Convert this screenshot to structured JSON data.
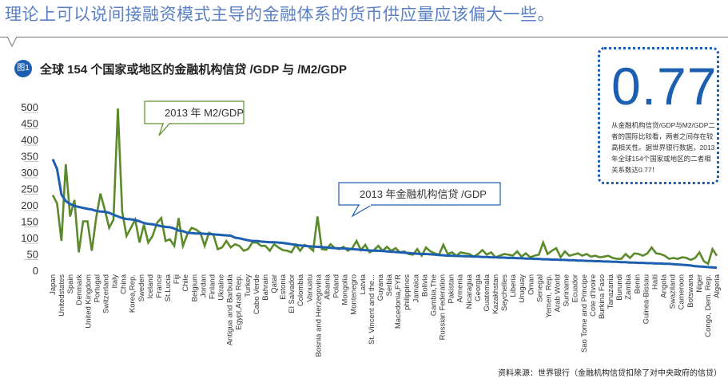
{
  "headline": "理论上可以说间接融资模式主导的金融体系的货币供应量应该偏大一些。",
  "figure": {
    "badge": "图1",
    "title": "全球 154 个国家或地区的金融机构信贷 /GDP 与 /M2/GDP"
  },
  "stat_box": {
    "value": "0.77",
    "text": "从金融机构信贷/GDP与M2/GDP二者的国际比较看，两者之间存在较高相关性。据世界银行数据，2013年全球154个国家或地区的二者相关系数达0.77！"
  },
  "footer": "资料来源：世界银行（金融机构信贷扣除了对中央政府的信贷）",
  "colors": {
    "m2": "#5a8a2a",
    "credit": "#1c5fb0",
    "headline": "#5b80c4"
  },
  "chart_data": {
    "type": "line",
    "title": "全球 154 个国家或地区的金融机构信贷 /GDP 与 /M2/GDP",
    "xlabel": "",
    "ylabel": "",
    "ylim": [
      0,
      500
    ],
    "yticks": [
      0,
      50,
      100,
      150,
      200,
      250,
      300,
      350,
      400,
      450,
      500
    ],
    "grid": false,
    "x_tick_labels": [
      "Japan",
      "Unitedstates",
      "Spain",
      "Denmark",
      "United Kingdom",
      "Portugal",
      "Switzerland",
      "Italy",
      "China",
      "Korea,Rep.",
      "Sweden",
      "Iceland",
      "France",
      "St.Lucia",
      "Fiji",
      "Chile",
      "Belgium",
      "Jordan",
      "Finland",
      "Ukraine",
      "Antigua and Barbuda",
      "Egypt,Arab Rep.",
      "Turkey",
      "Cabo Verde",
      "Bahrain",
      "Qatar",
      "Estonia",
      "El Salvador",
      "Colombia",
      "Vanuatu",
      "Bosnia and Herzegovina",
      "Albania",
      "Poland",
      "Mongolia",
      "Montenegro",
      "Latvia",
      "St. Vincent and the...",
      "Guyana",
      "Serbia",
      "Macedonia,FYR",
      "philippines",
      "Jamaica",
      "Bolivia",
      "Gambia,The",
      "Russian Federation",
      "Pakistan",
      "Armenia",
      "Nicaragua",
      "Georgia",
      "Guatemala",
      "Kazakhstan",
      "Seychelles",
      "Liberia",
      "Uruguay",
      "Oman",
      "Senegal",
      "Yemen, Rep.",
      "Arab World",
      "Suriname",
      "Ecuador",
      "Sao Tome and Principe",
      "Cote d'Ivoire",
      "Burkina Faso",
      "Tanazania",
      "Burundi",
      "Zambia",
      "Benin",
      "Guinea-Bissau",
      "Haiti",
      "Angola",
      "Swaziland",
      "Cameroon",
      "Botswana",
      "Niger",
      "Congo, Dem. Rep.",
      "Algeria"
    ],
    "n_points": 154,
    "series": [
      {
        "name": "2013 年 M2/GDP",
        "color": "#5a8a2a",
        "values": [
          230,
          205,
          90,
          325,
          165,
          215,
          55,
          150,
          150,
          60,
          160,
          235,
          185,
          130,
          155,
          495,
          180,
          105,
          130,
          155,
          85,
          140,
          85,
          105,
          145,
          160,
          90,
          95,
          75,
          160,
          75,
          110,
          130,
          125,
          115,
          75,
          115,
          110,
          65,
          70,
          90,
          70,
          80,
          75,
          60,
          65,
          85,
          85,
          75,
          75,
          60,
          80,
          70,
          62,
          60,
          55,
          78,
          60,
          78,
          72,
          60,
          165,
          65,
          63,
          80,
          68,
          65,
          72,
          60,
          68,
          90,
          62,
          78,
          55,
          62,
          75,
          60,
          72,
          60,
          68,
          55,
          58,
          50,
          48,
          65,
          45,
          70,
          58,
          52,
          48,
          78,
          50,
          55,
          45,
          55,
          52,
          50,
          42,
          50,
          62,
          48,
          55,
          40,
          45,
          50,
          48,
          45,
          58,
          42,
          52,
          40,
          45,
          48,
          85,
          50,
          60,
          68,
          40,
          58,
          45,
          48,
          52,
          45,
          50,
          42,
          45,
          40,
          42,
          45,
          38,
          35,
          35,
          50,
          38,
          52,
          50,
          45,
          52,
          70,
          52,
          50,
          45,
          35,
          38,
          35,
          40,
          38,
          32,
          38,
          55,
          28,
          20,
          65,
          45
        ]
      },
      {
        "name": "2013 年金融机构信贷 /GDP",
        "color": "#1c5fb0",
        "values": [
          340,
          310,
          232,
          212,
          203,
          197,
          194,
          191,
          188,
          186,
          182,
          180,
          179,
          176,
          170,
          165,
          160,
          157,
          156,
          154,
          150,
          145,
          142,
          141,
          138,
          135,
          133,
          132,
          128,
          122,
          120,
          115,
          114,
          113,
          113,
          112,
          111,
          110,
          109,
          108,
          107,
          106,
          100,
          98,
          95,
          92,
          90,
          90,
          88,
          87,
          86,
          86,
          85,
          84,
          82,
          80,
          78,
          76,
          75,
          74,
          73,
          72,
          71,
          70,
          69,
          68,
          67,
          67,
          66,
          65,
          64,
          63,
          62,
          61,
          60,
          60,
          59,
          58,
          57,
          56,
          55,
          54,
          53,
          52,
          51,
          50,
          50,
          49,
          48,
          47,
          46,
          45,
          45,
          44,
          44,
          43,
          43,
          42,
          42,
          41,
          41,
          40,
          40,
          39,
          39,
          38,
          38,
          37,
          37,
          36,
          36,
          35,
          35,
          34,
          34,
          33,
          33,
          32,
          32,
          31,
          31,
          30,
          30,
          29,
          29,
          28,
          28,
          27,
          27,
          26,
          26,
          25,
          25,
          24,
          24,
          23,
          23,
          22,
          22,
          21,
          21,
          20,
          20,
          19,
          18,
          17,
          16,
          15,
          13,
          12,
          11,
          10,
          9,
          8
        ]
      }
    ],
    "annotations": [
      {
        "text": "2013 年 M2/GDP",
        "series": "M2"
      },
      {
        "text": "2013 年金融机构信贷 /GDP",
        "series": "credit"
      }
    ]
  }
}
